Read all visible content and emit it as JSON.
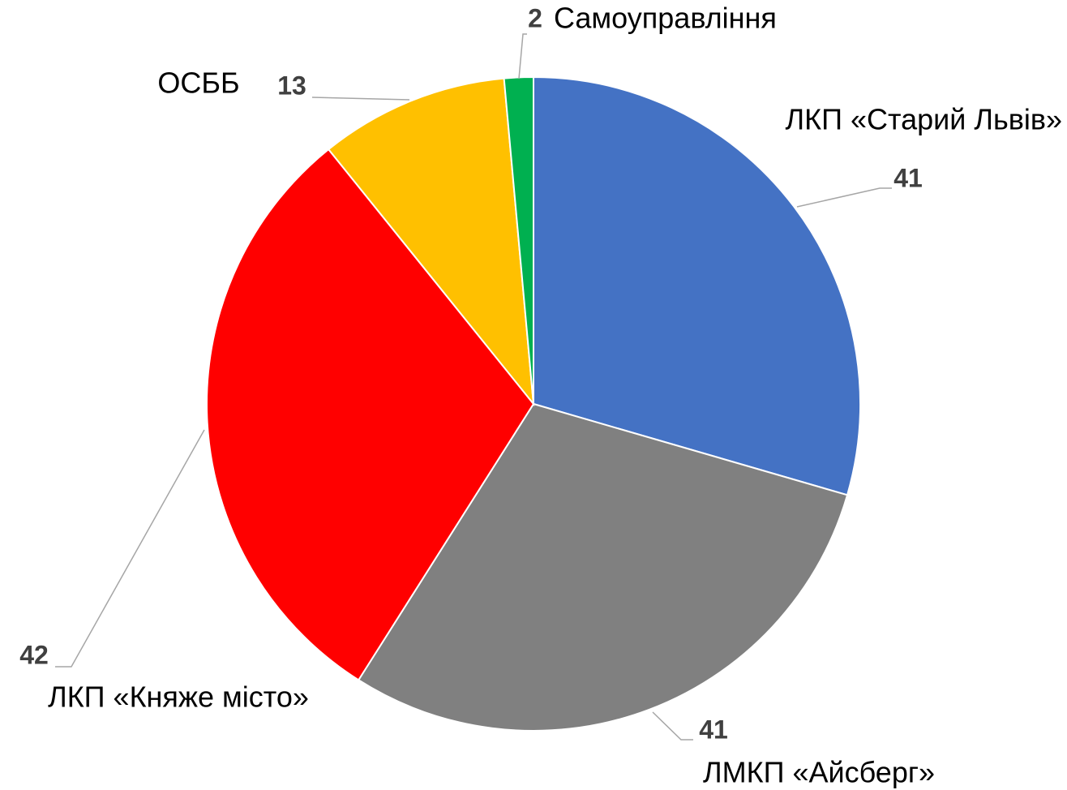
{
  "chart_data": {
    "type": "pie",
    "categories": [
      "ЛКП «Старий Львів»",
      "ЛМКП «Айсберг»",
      "ЛКП «Княже місто»",
      "ОСББ",
      "Самоуправління"
    ],
    "values": [
      41,
      41,
      42,
      13,
      2
    ],
    "colors": [
      "#4472c4",
      "#808080",
      "#ff0000",
      "#ffc000",
      "#00b050"
    ]
  }
}
